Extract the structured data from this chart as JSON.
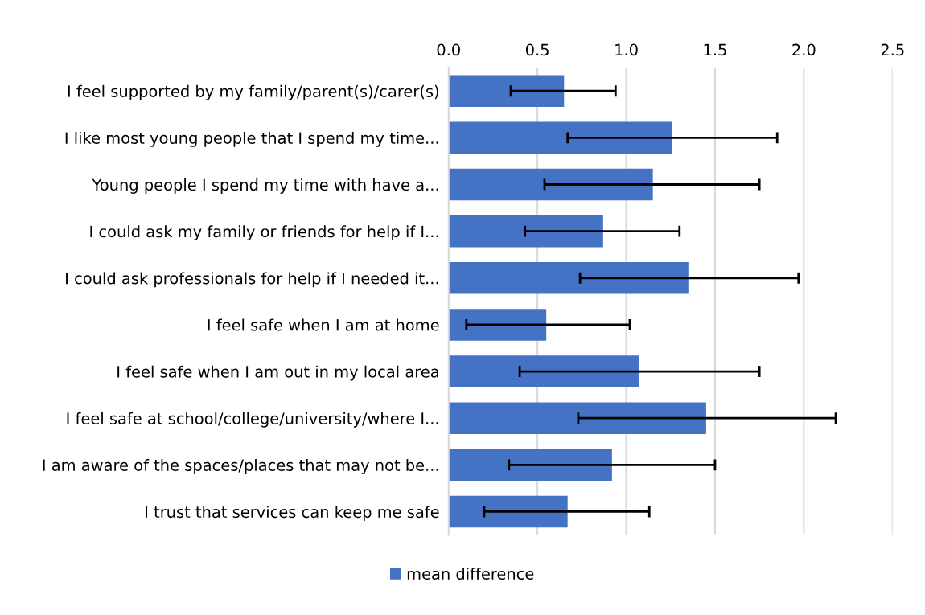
{
  "chart_data": {
    "type": "bar",
    "orientation": "horizontal",
    "categories": [
      "I feel supported by my family/parent(s)/carer(s)",
      "I like most young people that I spend my time...",
      "Young people I spend my time with have a...",
      "I could ask my family or friends for help if I...",
      "I could ask professionals for help if I needed it...",
      "I feel safe when I am at home",
      "I feel safe when I am out in my local area",
      "I feel safe at school/college/university/where I...",
      "I am aware of the spaces/places that may not be...",
      "I trust that services can keep me safe"
    ],
    "series": [
      {
        "name": "mean difference",
        "color": "#4472c4",
        "values": [
          0.65,
          1.26,
          1.15,
          0.87,
          1.35,
          0.55,
          1.07,
          1.45,
          0.92,
          0.67
        ],
        "errors": [
          [
            0.35,
            0.94
          ],
          [
            0.67,
            1.85
          ],
          [
            0.54,
            1.75
          ],
          [
            0.43,
            1.3
          ],
          [
            0.74,
            1.97
          ],
          [
            0.1,
            1.02
          ],
          [
            0.4,
            1.75
          ],
          [
            0.73,
            2.18
          ],
          [
            0.34,
            1.5
          ],
          [
            0.2,
            1.13
          ]
        ]
      }
    ],
    "xlim": [
      0,
      2.5
    ],
    "xticks": [
      {
        "value": 0,
        "label": "0.0"
      },
      0.5,
      {
        "value": 1,
        "label": "1.0"
      },
      1.5,
      {
        "value": 2,
        "label": "2.0"
      },
      2.5
    ],
    "grid": "x",
    "legend": "bottom"
  }
}
